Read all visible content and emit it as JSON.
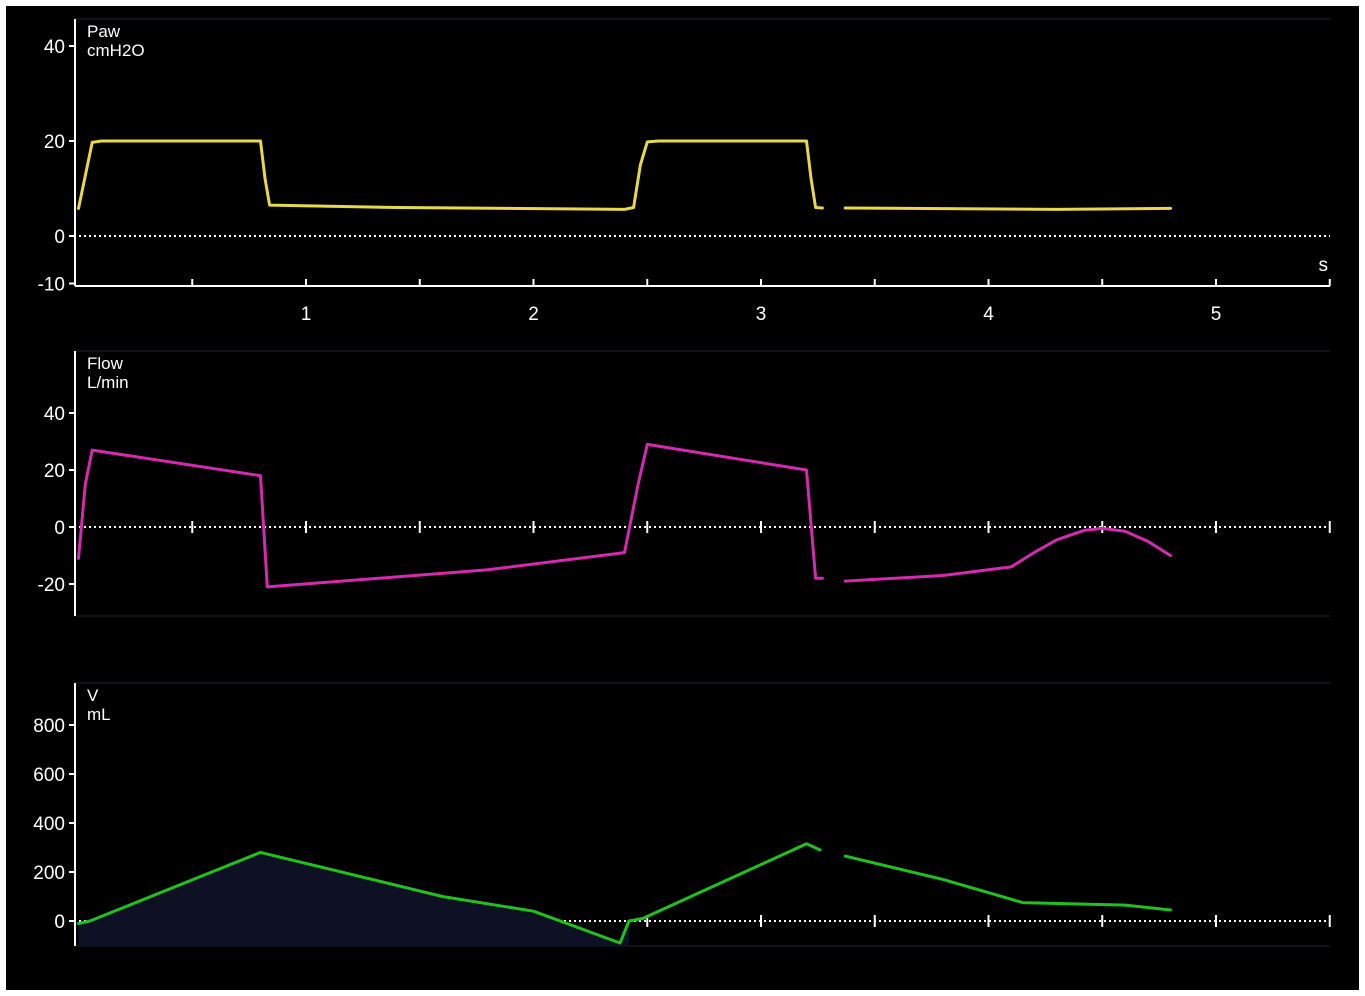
{
  "chart_data": [
    {
      "type": "line",
      "title": "Paw",
      "unit": "cmH2O",
      "ylim": [
        -10,
        45
      ],
      "xlim": [
        -0.05,
        5.5
      ],
      "yticks": [
        "40",
        "20",
        "0",
        "-10"
      ],
      "xticks": [
        "1",
        "2",
        "3",
        "4",
        "5"
      ],
      "xunit": "s",
      "color": "#e8d84a",
      "series": [
        {
          "segments": [
            [
              [
                0.0,
                5.8
              ],
              [
                0.06,
                19.7
              ],
              [
                0.1,
                20.0
              ],
              [
                0.8,
                20.0
              ],
              [
                0.82,
                12.0
              ],
              [
                0.84,
                6.5
              ],
              [
                1.4,
                6.0
              ],
              [
                2.4,
                5.6
              ],
              [
                2.44,
                6.0
              ],
              [
                2.47,
                15.0
              ],
              [
                2.5,
                19.8
              ],
              [
                2.55,
                20.0
              ],
              [
                3.2,
                20.0
              ],
              [
                3.22,
                12.0
              ],
              [
                3.24,
                6.0
              ],
              [
                3.27,
                5.9
              ]
            ],
            [
              [
                3.37,
                5.9
              ],
              [
                4.3,
                5.6
              ],
              [
                4.8,
                5.8
              ]
            ]
          ]
        }
      ]
    },
    {
      "type": "line",
      "title": "Flow",
      "unit": "L/min",
      "ylim": [
        -30,
        60
      ],
      "xlim": [
        -0.05,
        5.5
      ],
      "yticks": [
        "40",
        "20",
        "0",
        "-20"
      ],
      "color": "#d42ab0",
      "series": [
        {
          "segments": [
            [
              [
                0.0,
                -11.0
              ],
              [
                0.03,
                15.0
              ],
              [
                0.06,
                27.0
              ],
              [
                0.8,
                18.0
              ],
              [
                0.83,
                -21.0
              ],
              [
                1.8,
                -15.0
              ],
              [
                2.4,
                -9.0
              ],
              [
                2.46,
                15.0
              ],
              [
                2.5,
                29.0
              ],
              [
                3.2,
                20.0
              ],
              [
                3.24,
                -18.0
              ],
              [
                3.27,
                -18.0
              ]
            ],
            [
              [
                3.37,
                -19.0
              ],
              [
                3.8,
                -17.0
              ],
              [
                4.1,
                -14.0
              ],
              [
                4.2,
                -9.0
              ],
              [
                4.3,
                -4.5
              ],
              [
                4.42,
                -1.2
              ],
              [
                4.5,
                -0.5
              ],
              [
                4.6,
                -1.5
              ],
              [
                4.7,
                -5.0
              ],
              [
                4.8,
                -10.0
              ]
            ]
          ]
        }
      ]
    },
    {
      "type": "area",
      "title": "V",
      "unit": "mL",
      "ylim": [
        -100,
        950
      ],
      "xlim": [
        -0.05,
        5.5
      ],
      "yticks": [
        "800",
        "600",
        "400",
        "200",
        "0"
      ],
      "color": "#22c01e",
      "fill": "#0e1124",
      "series": [
        {
          "segments": [
            [
              [
                0.0,
                -10.0
              ],
              [
                0.05,
                0.0
              ],
              [
                0.8,
                280.0
              ],
              [
                1.6,
                100.0
              ],
              [
                2.0,
                40.0
              ],
              [
                2.38,
                -90.0
              ],
              [
                2.42,
                0.0
              ],
              [
                2.48,
                10.0
              ],
              [
                3.2,
                315.0
              ],
              [
                3.26,
                290.0
              ]
            ],
            [
              [
                3.37,
                265.0
              ],
              [
                3.8,
                170.0
              ],
              [
                4.15,
                75.0
              ],
              [
                4.6,
                65.0
              ],
              [
                4.8,
                45.0
              ]
            ]
          ]
        }
      ]
    }
  ]
}
